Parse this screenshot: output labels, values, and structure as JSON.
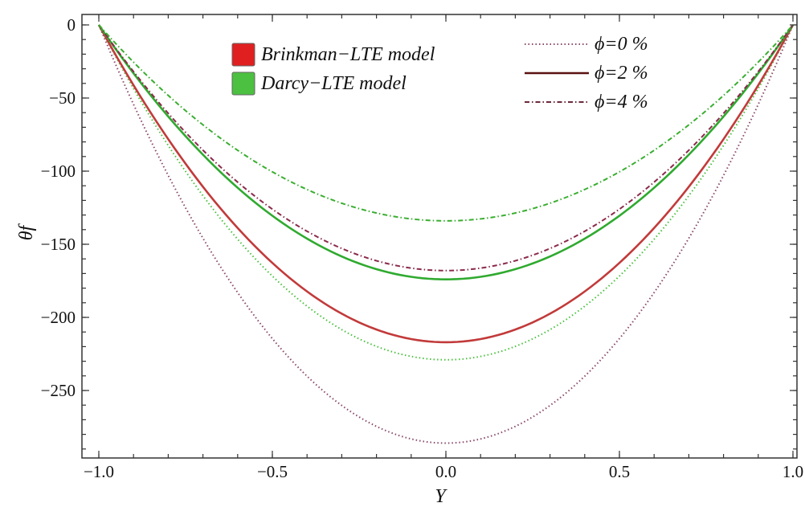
{
  "chart_data": {
    "type": "line",
    "title": "",
    "xlabel": "Y",
    "ylabel": "θf",
    "xlim": [
      -1.0,
      1.0
    ],
    "ylim": [
      -295,
      10
    ],
    "x_ticks": [
      -1.0,
      -0.5,
      0.0,
      0.5,
      1.0
    ],
    "x_tick_labels": [
      "−1.0",
      "−0.5",
      "0.0",
      "0.5",
      "1.0"
    ],
    "y_ticks": [
      0,
      -50,
      -100,
      -150,
      -200,
      -250
    ],
    "y_tick_labels": [
      "0",
      "−50",
      "−100",
      "−150",
      "−200",
      "−250"
    ],
    "grid": false,
    "model_legend": [
      {
        "label": "Brinkman−LTE model",
        "color": "#e02020"
      },
      {
        "label": "Darcy−LTE model",
        "color": "#4cc040"
      }
    ],
    "style_legend": [
      {
        "label": "ϕ=0 %",
        "style": "dotted"
      },
      {
        "label": "ϕ=2 %",
        "style": "solid"
      },
      {
        "label": "ϕ=4 %",
        "style": "dashdot"
      }
    ],
    "colors": {
      "brinkman_phi0": "#8a4a6a",
      "brinkman_phi2": "#c23a3a",
      "brinkman_phi4": "#8a2a4a",
      "darcy_phi0": "#4cc040",
      "darcy_phi2": "#2faa2f",
      "darcy_phi4": "#3aae30",
      "axes": "#333333"
    },
    "series": [
      {
        "model": "Brinkman−LTE model",
        "phi": "ϕ=0 %",
        "style": "dotted",
        "color_key": "brinkman_phi0",
        "x": [
          -1.0,
          -0.75,
          -0.5,
          -0.25,
          0.0,
          0.25,
          0.5,
          0.75,
          1.0
        ],
        "y": [
          0,
          -124,
          -214,
          -268,
          -286,
          -268,
          -214,
          -124,
          0
        ]
      },
      {
        "model": "Darcy−LTE model",
        "phi": "ϕ=0 %",
        "style": "dotted",
        "color_key": "darcy_phi0",
        "x": [
          -1.0,
          -0.75,
          -0.5,
          -0.25,
          0.0,
          0.25,
          0.5,
          0.75,
          1.0
        ],
        "y": [
          0,
          -99,
          -171,
          -214,
          -229,
          -214,
          -171,
          -99,
          0
        ]
      },
      {
        "model": "Brinkman−LTE model",
        "phi": "ϕ=2 %",
        "style": "solid",
        "color_key": "brinkman_phi2",
        "x": [
          -1.0,
          -0.75,
          -0.5,
          -0.25,
          0.0,
          0.25,
          0.5,
          0.75,
          1.0
        ],
        "y": [
          0,
          -94,
          -162,
          -203,
          -217,
          -203,
          -162,
          -94,
          0
        ]
      },
      {
        "model": "Darcy−LTE model",
        "phi": "ϕ=2 %",
        "style": "solid",
        "color_key": "darcy_phi2",
        "x": [
          -1.0,
          -0.75,
          -0.5,
          -0.25,
          0.0,
          0.25,
          0.5,
          0.75,
          1.0
        ],
        "y": [
          0,
          -75,
          -130,
          -163,
          -174,
          -163,
          -130,
          -75,
          0
        ]
      },
      {
        "model": "Brinkman−LTE model",
        "phi": "ϕ=4 %",
        "style": "dashdot",
        "color_key": "brinkman_phi4",
        "x": [
          -1.0,
          -0.75,
          -0.5,
          -0.25,
          0.0,
          0.25,
          0.5,
          0.75,
          1.0
        ],
        "y": [
          0,
          -73,
          -126,
          -158,
          -168,
          -158,
          -126,
          -73,
          0
        ]
      },
      {
        "model": "Darcy−LTE model",
        "phi": "ϕ=4 %",
        "style": "dashdot",
        "color_key": "darcy_phi4",
        "x": [
          -1.0,
          -0.75,
          -0.5,
          -0.25,
          0.0,
          0.25,
          0.5,
          0.75,
          1.0
        ],
        "y": [
          0,
          -58,
          -101,
          -126,
          -134,
          -126,
          -101,
          -58,
          0
        ]
      }
    ]
  }
}
